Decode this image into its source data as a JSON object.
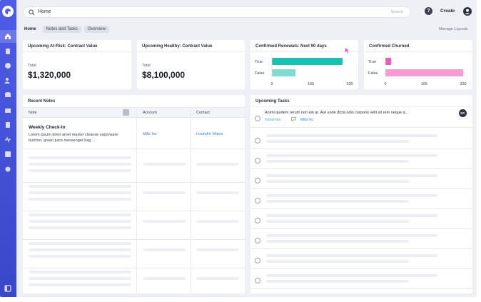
{
  "search": {
    "query": "Home",
    "hint": "Search"
  },
  "header": {
    "create_label": "Create",
    "help_glyph": "?"
  },
  "tabs": [
    {
      "label": "Home",
      "selected": true
    },
    {
      "label": "Notes and Tasks",
      "selected": false
    },
    {
      "label": "Overview",
      "selected": false
    }
  ],
  "manage_layouts": "Manage Layouts",
  "cards": {
    "at_risk": {
      "title": "Upcoming At-Risk: Contract Value",
      "label": "Total",
      "value": "$1,320,000"
    },
    "healthy": {
      "title": "Upcoming Healthy: Contract Value",
      "label": "Total",
      "value": "$8,100,000"
    },
    "renewals": {
      "title": "Confirmed Renewals: Next 90 days"
    },
    "churned": {
      "title": "Confirmed Churned"
    }
  },
  "chart_data": [
    {
      "type": "bar",
      "orientation": "horizontal",
      "title": "Confirmed Renewals: Next 90 days",
      "categories": [
        "True",
        "False"
      ],
      "values": [
        300,
        100
      ],
      "xlim": [
        0,
        330
      ],
      "xticks": [
        "0",
        "165",
        "330"
      ],
      "colors": [
        "#18c1b3",
        "#7fdad1"
      ]
    },
    {
      "type": "bar",
      "orientation": "horizontal",
      "title": "Confirmed Churned",
      "categories": [
        "True",
        "False"
      ],
      "values": [
        25,
        330
      ],
      "xlim": [
        0,
        330
      ],
      "xticks": [
        "0",
        "165",
        "330"
      ],
      "colors": [
        "#ec5db4",
        "#f59cd2"
      ]
    }
  ],
  "recent_notes": {
    "title": "Recent Notes",
    "columns": [
      "Note",
      "Account",
      "Contact"
    ],
    "rows": [
      {
        "title": "Weekly Check-In",
        "body": "Lorem ipsum dolor amet master cleanse vaporware butcher, green juice messenger bag ...",
        "account": "Mills Inc",
        "contact": "Lisandro Matos"
      }
    ]
  },
  "upcoming_tasks": {
    "title": "Upcoming Tasks",
    "items": [
      {
        "text": "Animi quidem rerum non est at. Aut unde dicta odio corporis velit sit rem neque q...",
        "due": "Tomorrow",
        "account": "Mills Inc",
        "assignee_initials": "DC"
      }
    ]
  },
  "colors": {
    "sidebar": "#4e5ce6",
    "link": "#3a86c8",
    "teal": "#18c1b3",
    "pink": "#ec5db4"
  }
}
